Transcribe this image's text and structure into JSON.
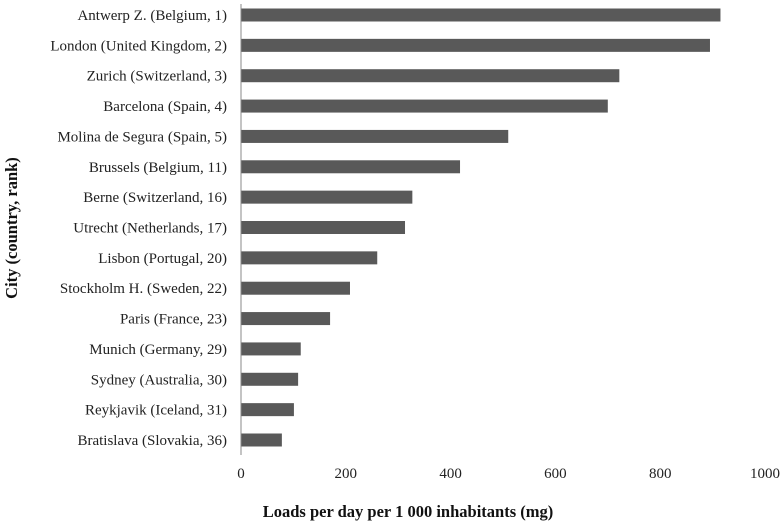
{
  "chart_data": {
    "type": "bar",
    "orientation": "horizontal",
    "title": "",
    "xlabel": "Loads per day per 1 000 inhabitants (mg)",
    "ylabel": "City (country, rank)",
    "xlim": [
      0,
      1000
    ],
    "xticks": [
      "0",
      "200",
      "400",
      "600",
      "800",
      "1000"
    ],
    "grid": false,
    "bar_color": "#595959",
    "categories": [
      "Antwerp Z. (Belgium, 1)",
      "London (United Kingdom, 2)",
      "Zurich (Switzerland, 3)",
      "Barcelona (Spain, 4)",
      "Molina de Segura (Spain, 5)",
      "Brussels (Belgium, 11)",
      "Berne (Switzerland, 16)",
      "Utrecht (Netherlands, 17)",
      "Lisbon (Portugal, 20)",
      "Stockholm H. (Sweden, 22)",
      "Paris (France, 23)",
      "Munich (Germany, 29)",
      "Sydney (Australia, 30)",
      "Reykjavik (Iceland, 31)",
      "Bratislava (Slovakia, 36)"
    ],
    "values": [
      915,
      895,
      722,
      700,
      510,
      418,
      327,
      313,
      260,
      208,
      170,
      114,
      109,
      101,
      78
    ]
  }
}
